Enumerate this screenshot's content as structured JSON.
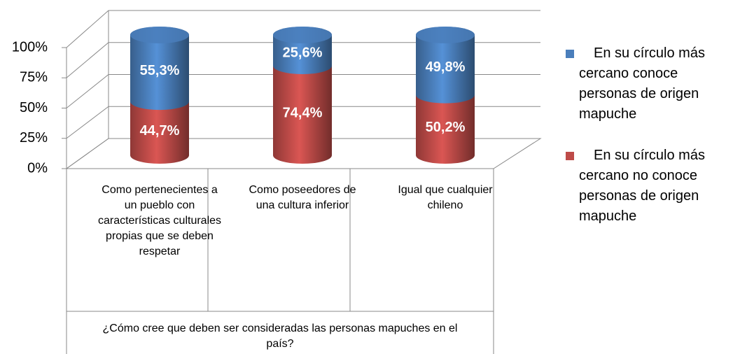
{
  "chart_data": {
    "type": "bar3d_stacked",
    "categories": [
      "Como pertenecientes a un pueblo con características culturales propias que se deben respetar",
      "Como poseedores de una cultura inferior",
      "Igual que cualquier chileno"
    ],
    "x_label": "¿Cómo cree que deben ser consideradas las personas mapuches en el país?",
    "series": [
      {
        "name": "En su círculo más cercano conoce personas de origen mapuche",
        "color": "#4a7ebb",
        "values": [
          55.3,
          25.6,
          49.8
        ],
        "value_labels": [
          "55,3%",
          "25,6%",
          "49,8%"
        ]
      },
      {
        "name": "En su círculo más cercano no conoce personas de origen mapuche",
        "color": "#be4b48",
        "values": [
          44.7,
          74.4,
          50.2
        ],
        "value_labels": [
          "44,7%",
          "74,4%",
          "50,2%"
        ]
      }
    ],
    "ylim": [
      0,
      100
    ],
    "yticks": [
      {
        "value": 0,
        "label": "0%"
      },
      {
        "value": 25,
        "label": "25%"
      },
      {
        "value": 50,
        "label": "50%"
      },
      {
        "value": 75,
        "label": "75%"
      },
      {
        "value": 100,
        "label": "100%"
      }
    ],
    "grid": true,
    "legend": "right"
  }
}
